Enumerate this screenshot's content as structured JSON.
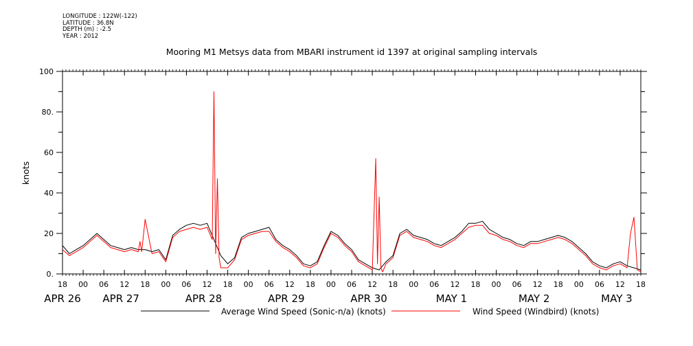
{
  "header": {
    "meta_lines": [
      "LONGITUDE : 122W(-122)",
      "LATITUDE : 36.8N",
      "DEPTH (m) : -2.5",
      "YEAR : 2012"
    ]
  },
  "chart_data": {
    "type": "line",
    "title": "Mooring M1 Metsys data from MBARI instrument id 1397 at original sampling intervals",
    "ylabel": "knots",
    "xlabel": "",
    "ylim": [
      0,
      100
    ],
    "xlim": [
      0,
      168
    ],
    "y_ticks": [
      0,
      20,
      40,
      60,
      80,
      100
    ],
    "y_tick_labels": [
      "0.",
      "20",
      "40",
      "60",
      "80.",
      "100"
    ],
    "x_ticks": [
      0,
      6,
      12,
      18,
      24,
      30,
      36,
      42,
      48,
      54,
      60,
      66,
      72,
      78,
      84,
      90,
      96,
      102,
      108,
      114,
      120,
      126,
      132,
      138,
      144,
      150,
      156,
      162,
      168
    ],
    "x_tick_labels": [
      "18",
      "00",
      "06",
      "12",
      "18",
      "00",
      "06",
      "12",
      "18",
      "00",
      "06",
      "12",
      "18",
      "00",
      "06",
      "12",
      "18",
      "00",
      "06",
      "12",
      "18",
      "00",
      "06",
      "12",
      "18",
      "00",
      "06",
      "12",
      "18"
    ],
    "date_labels": [
      {
        "text": "APR 26",
        "x": 0
      },
      {
        "text": "APR 27",
        "x": 17
      },
      {
        "text": "APR 28",
        "x": 41
      },
      {
        "text": "APR 29",
        "x": 65
      },
      {
        "text": "APR 30",
        "x": 89
      },
      {
        "text": "MAY  1",
        "x": 113
      },
      {
        "text": "MAY  2",
        "x": 137
      },
      {
        "text": "MAY  3",
        "x": 161
      }
    ],
    "grid": false,
    "legend_position": "bottom",
    "series": [
      {
        "name": "Average Wind Speed (Sonic-n/a) (knots)",
        "color": "#000000",
        "x": [
          0,
          2,
          4,
          6,
          8,
          10,
          12,
          14,
          16,
          18,
          20,
          22,
          24,
          26,
          28,
          30,
          32,
          34,
          36,
          38,
          40,
          42,
          44,
          46,
          48,
          50,
          52,
          54,
          56,
          58,
          60,
          62,
          64,
          66,
          68,
          70,
          72,
          74,
          76,
          78,
          80,
          82,
          84,
          86,
          88,
          90,
          92,
          94,
          96,
          98,
          100,
          102,
          104,
          106,
          108,
          110,
          112,
          114,
          116,
          118,
          120,
          122,
          124,
          126,
          128,
          130,
          132,
          134,
          136,
          138,
          140,
          142,
          144,
          146,
          148,
          150,
          152,
          154,
          156,
          158,
          160,
          162,
          164,
          166,
          168
        ],
        "y": [
          14,
          10,
          12,
          14,
          17,
          20,
          17,
          14,
          13,
          12,
          13,
          12,
          12,
          11,
          12,
          7,
          19,
          22,
          24,
          25,
          24,
          25,
          17,
          9,
          5,
          8,
          18,
          20,
          21,
          22,
          23,
          17,
          14,
          12,
          9,
          5,
          4,
          6,
          14,
          21,
          19,
          15,
          12,
          7,
          5,
          3,
          2,
          6,
          9,
          20,
          22,
          19,
          18,
          17,
          15,
          14,
          16,
          18,
          21,
          25,
          25,
          26,
          22,
          20,
          18,
          17,
          15,
          14,
          16,
          16,
          17,
          18,
          19,
          18,
          16,
          13,
          10,
          6,
          4,
          3,
          5,
          6,
          4,
          3,
          2
        ]
      },
      {
        "name": "Wind Speed (Windbird) (knots)",
        "color": "#ff0000",
        "x": [
          0,
          2,
          4,
          6,
          8,
          10,
          12,
          14,
          16,
          18,
          20,
          22,
          22.5,
          23,
          24,
          26,
          28,
          30,
          32,
          34,
          36,
          38,
          40,
          42,
          43.5,
          44,
          44.5,
          45,
          45.5,
          46,
          48,
          50,
          52,
          54,
          56,
          58,
          60,
          62,
          64,
          66,
          68,
          70,
          72,
          74,
          76,
          78,
          80,
          82,
          84,
          86,
          88,
          90,
          91,
          91.5,
          92,
          92.5,
          93,
          94,
          96,
          98,
          100,
          102,
          104,
          106,
          108,
          110,
          112,
          114,
          116,
          118,
          120,
          122,
          124,
          126,
          128,
          130,
          132,
          134,
          136,
          138,
          140,
          142,
          144,
          146,
          148,
          150,
          152,
          154,
          156,
          158,
          160,
          162,
          164,
          165,
          166,
          167,
          168
        ],
        "y": [
          12,
          9,
          11,
          13,
          16,
          19,
          16,
          13,
          12,
          11,
          12,
          11,
          16,
          11,
          27,
          10,
          11,
          6,
          18,
          21,
          22,
          23,
          22,
          23,
          17,
          90,
          10,
          47,
          8,
          3,
          3,
          7,
          17,
          19,
          20,
          21,
          21,
          16,
          13,
          11,
          8,
          4,
          3,
          5,
          13,
          20,
          18,
          14,
          11,
          6,
          4,
          2,
          57,
          5,
          38,
          3,
          1,
          5,
          8,
          19,
          21,
          18,
          17,
          16,
          14,
          13,
          15,
          17,
          20,
          23,
          24,
          24,
          20,
          19,
          17,
          16,
          14,
          13,
          15,
          15,
          16,
          17,
          18,
          17,
          15,
          12,
          9,
          5,
          3,
          2,
          4,
          5,
          3,
          20,
          28,
          2,
          1
        ]
      }
    ]
  }
}
